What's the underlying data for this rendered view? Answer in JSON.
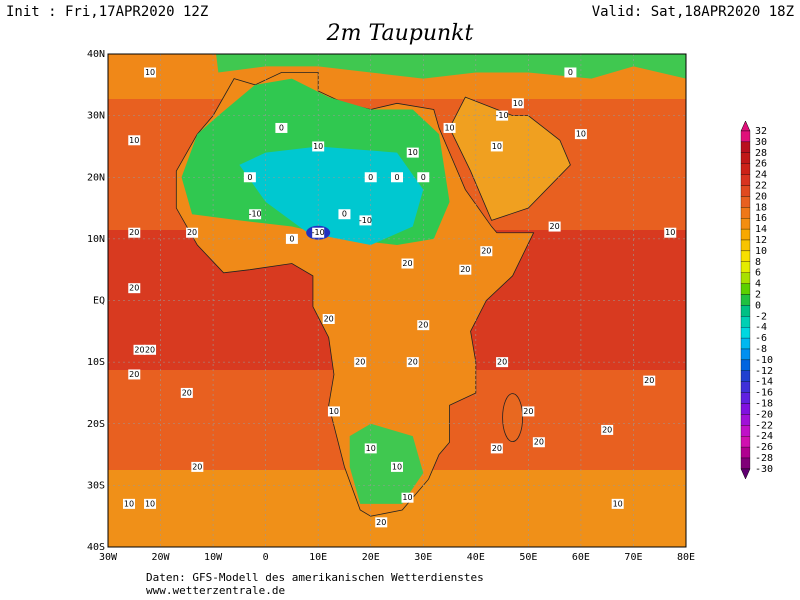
{
  "header": {
    "init": "Init : Fri,17APR2020 12Z",
    "valid": "Valid: Sat,18APR2020 18Z",
    "title": "2m Taupunkt"
  },
  "map": {
    "xlim": [
      -30,
      80
    ],
    "ylim": [
      -40,
      40
    ],
    "xticks": [
      {
        "value": -30,
        "label": "30W"
      },
      {
        "value": -20,
        "label": "20W"
      },
      {
        "value": -10,
        "label": "10W"
      },
      0,
      {
        "value": 10,
        "label": "10E"
      },
      {
        "value": 20,
        "label": "20E"
      },
      {
        "value": 30,
        "label": "30E"
      },
      {
        "value": 40,
        "label": "40E"
      },
      {
        "value": 50,
        "label": "50E"
      },
      {
        "value": 60,
        "label": "60E"
      },
      {
        "value": 70,
        "label": "70E"
      },
      {
        "value": 80,
        "label": "80E"
      }
    ],
    "yticks": [
      {
        "value": 40,
        "label": "40N"
      },
      {
        "value": 30,
        "label": "30N"
      },
      {
        "value": 20,
        "label": "20N"
      },
      {
        "value": 10,
        "label": "10N"
      },
      {
        "value": 0,
        "label": "EQ"
      },
      {
        "value": -10,
        "label": "10S"
      },
      {
        "value": -20,
        "label": "20S"
      },
      {
        "value": -30,
        "label": "30S"
      },
      {
        "value": -40,
        "label": "40S"
      }
    ]
  },
  "contour_labels": [
    10,
    10,
    0,
    0,
    10,
    0,
    0,
    0,
    -10,
    -10,
    -10,
    0,
    0,
    20,
    20,
    20,
    20,
    20,
    20,
    20,
    20,
    20,
    20,
    20,
    20,
    20,
    20,
    10,
    10,
    10,
    10,
    20,
    20,
    20,
    20,
    20,
    10,
    10,
    10,
    10,
    20,
    10,
    10,
    0,
    -10,
    10,
    20,
    20,
    20,
    10,
    10
  ],
  "colorbar": {
    "values": [
      32,
      30,
      28,
      26,
      24,
      22,
      20,
      18,
      16,
      14,
      12,
      10,
      8,
      6,
      4,
      2,
      0,
      -2,
      -4,
      -6,
      -8,
      -10,
      -12,
      -14,
      -16,
      -18,
      -20,
      -22,
      -24,
      -26,
      -28,
      -30
    ],
    "colors": [
      "#e0107a",
      "#b8101e",
      "#c01818",
      "#cc2218",
      "#d83420",
      "#e04a20",
      "#e86020",
      "#ef7818",
      "#f38e10",
      "#f8a800",
      "#f8c400",
      "#f8e000",
      "#e4ec00",
      "#a8e000",
      "#5cd000",
      "#20c040",
      "#00c084",
      "#00d0b4",
      "#00d8e0",
      "#00b8f0",
      "#0090f0",
      "#0064e0",
      "#2040d0",
      "#4030d8",
      "#6020e0",
      "#8010e0",
      "#a010d8",
      "#c010c8",
      "#d010b0",
      "#b00090",
      "#800078",
      "#600070"
    ]
  },
  "footer": {
    "source": "Daten: GFS-Modell des amerikanischen Wetterdienstes",
    "url": "www.wetterzentrale.de"
  }
}
